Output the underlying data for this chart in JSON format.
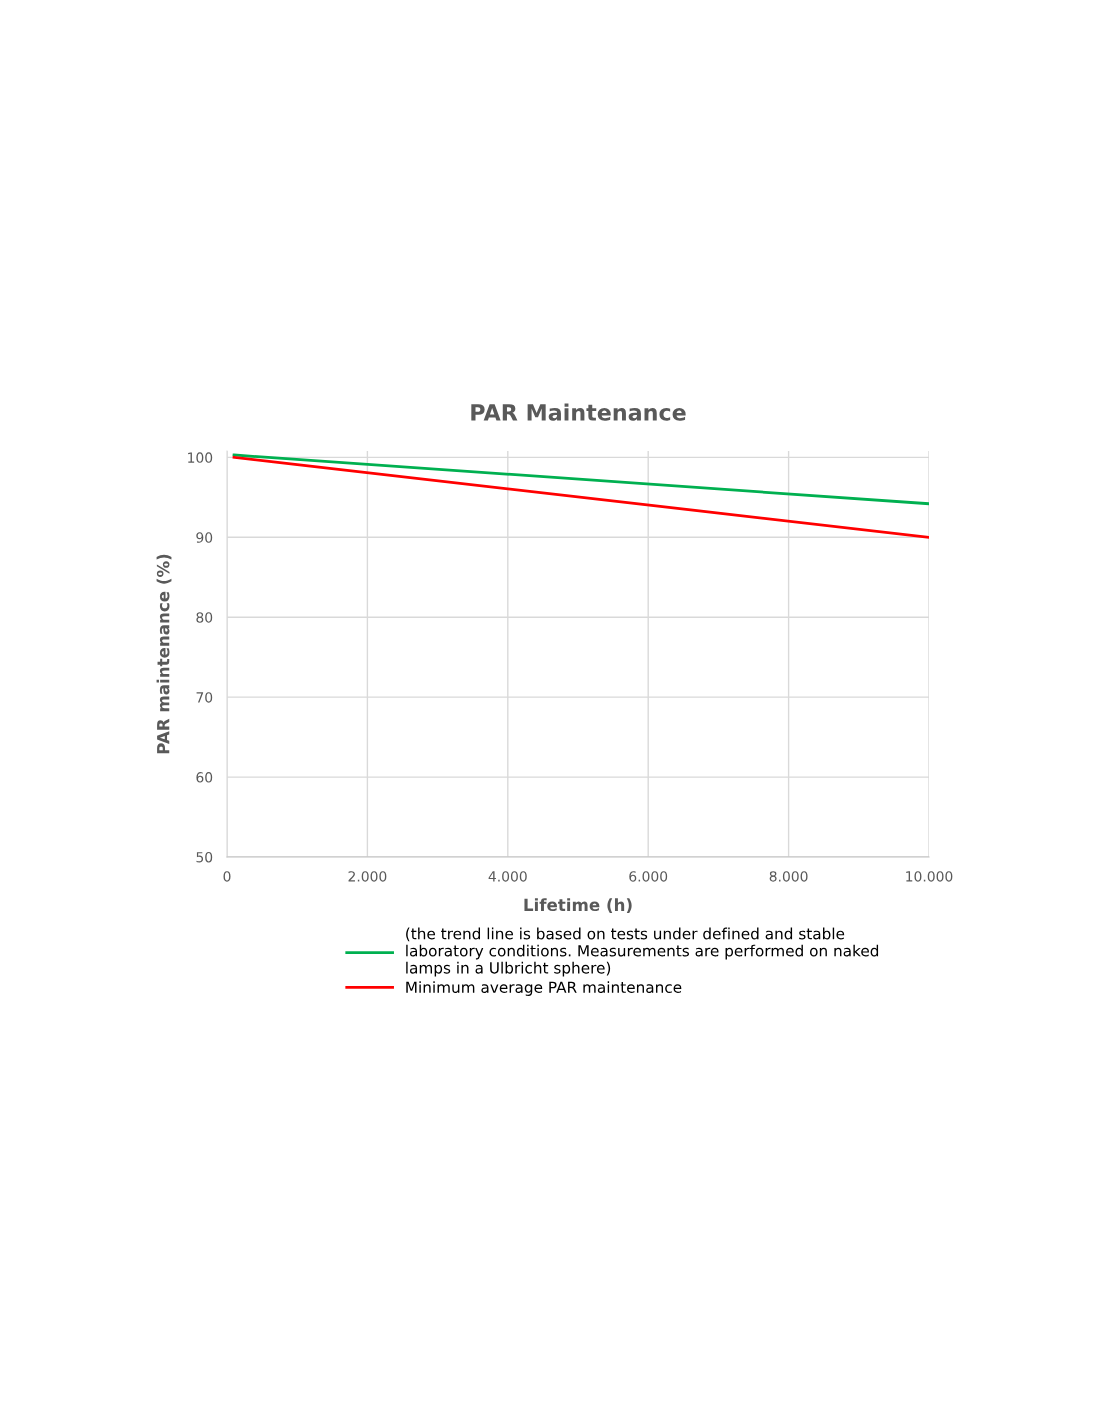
{
  "chart_data": {
    "type": "line",
    "title": "PAR Maintenance",
    "xlabel": "Lifetime (h)",
    "ylabel": "PAR maintenance (%)",
    "series": [
      {
        "name": "(the trend line is based on tests under defined and stable\nlaboratory conditions. Measurements are performed on naked\nlamps in a Ulbricht sphere)",
        "color": "#00b050",
        "x": [
          100,
          10000
        ],
        "values": [
          100.3,
          94.2
        ]
      },
      {
        "name": "Minimum average PAR maintenance",
        "color": "#ff0000",
        "x": [
          100,
          1000,
          10000
        ],
        "values": [
          100,
          99.1,
          90
        ]
      }
    ],
    "xlim": [
      0,
      10000
    ],
    "xticks": [
      0,
      {
        "value": 2000,
        "label": "2.000"
      },
      {
        "value": 4000,
        "label": "4.000"
      },
      {
        "value": 6000,
        "label": "6.000"
      },
      {
        "value": 8000,
        "label": "8.000"
      },
      {
        "value": 10000,
        "label": "10.000"
      }
    ],
    "ylim": [
      50,
      100.8
    ],
    "yticks": [
      50,
      60,
      70,
      80,
      90,
      100
    ],
    "grid": true,
    "legend": "bottom",
    "marker": "none",
    "line_style": "solid"
  }
}
